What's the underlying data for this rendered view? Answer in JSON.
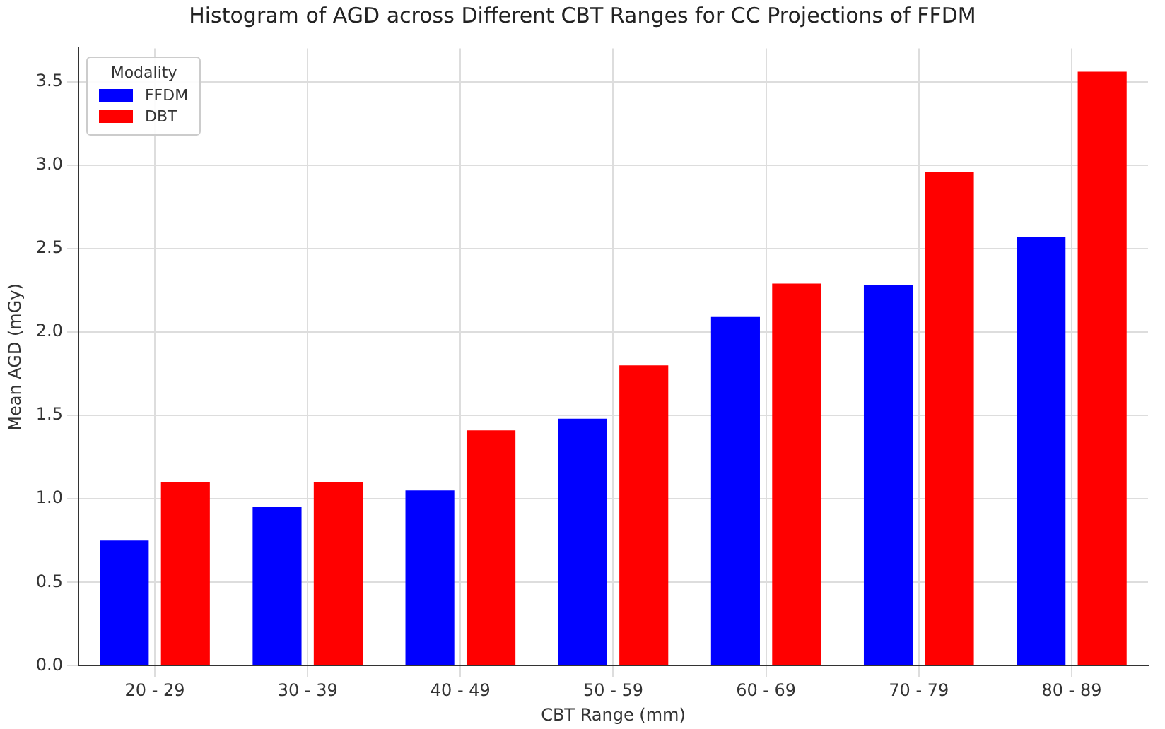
{
  "chart_data": {
    "type": "bar",
    "title": "Histogram of AGD across Different CBT Ranges for CC Projections of FFDM",
    "xlabel": "CBT Range (mm)",
    "ylabel": "Mean AGD (mGy)",
    "legend_title": "Modality",
    "categories": [
      "20 - 29",
      "30 - 39",
      "40 - 49",
      "50 - 59",
      "60 - 69",
      "70 - 79",
      "80 - 89"
    ],
    "series": [
      {
        "name": "FFDM",
        "color": "#0000ff",
        "values": [
          0.75,
          0.95,
          1.05,
          1.48,
          2.09,
          2.28,
          2.57
        ]
      },
      {
        "name": "DBT",
        "color": "#ff0000",
        "values": [
          1.1,
          1.1,
          1.41,
          1.8,
          2.29,
          2.96,
          3.56
        ]
      }
    ],
    "ylim": [
      0,
      3.7
    ],
    "yticks": [
      {
        "value": 0,
        "label": "0.0"
      },
      0.5,
      {
        "value": 1,
        "label": "1.0"
      },
      1.5,
      {
        "value": 2,
        "label": "2.0"
      },
      2.5,
      {
        "value": 3,
        "label": "3.0"
      },
      3.5
    ],
    "grid": true,
    "legend": "top left"
  }
}
